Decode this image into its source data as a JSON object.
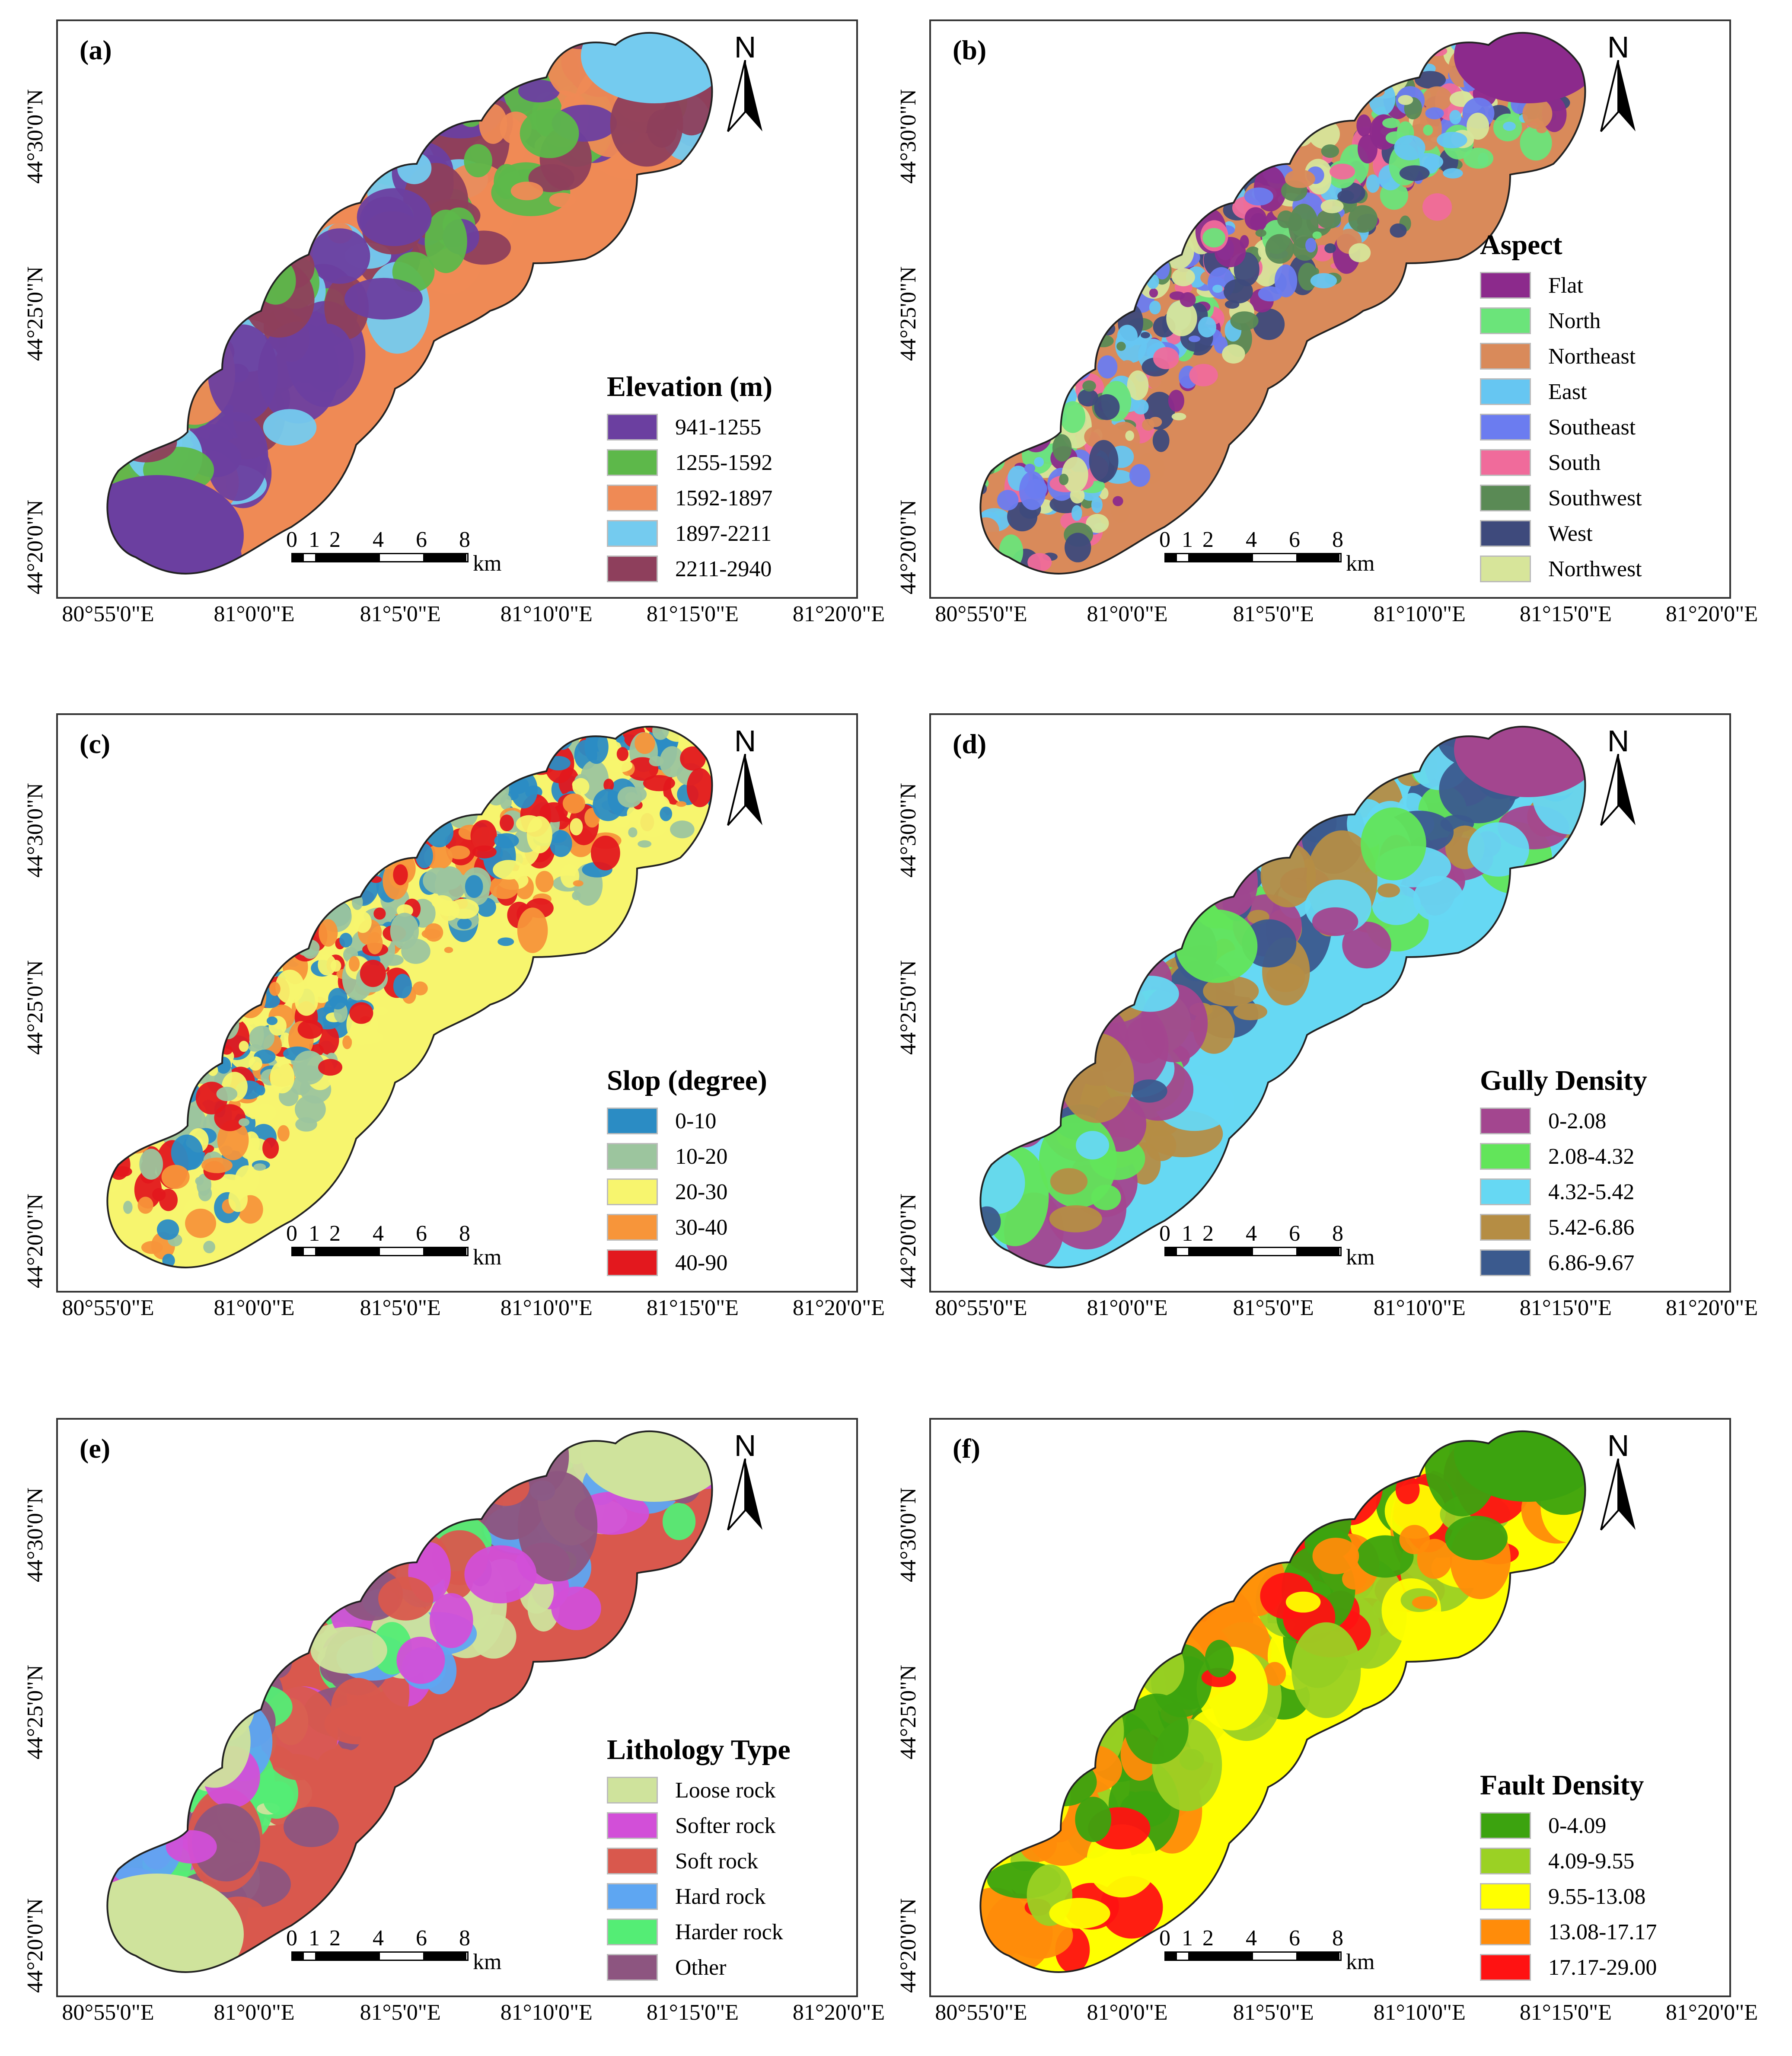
{
  "north_label": "N",
  "scale": {
    "ticks": [
      "0",
      "1",
      "2",
      "4",
      "6",
      "8"
    ],
    "unit": "km"
  },
  "x_ticks": [
    "80°55'0\"E",
    "81°0'0\"E",
    "81°5'0\"E",
    "81°10'0\"E",
    "81°15'0\"E",
    "81°20'0\"E"
  ],
  "y_ticks": [
    "44°30'0\"N",
    "44°25'0\"N",
    "44°20'0\"N"
  ],
  "panels": [
    {
      "id": "a",
      "label": "(a)",
      "legend_title": "Elevation (m)",
      "classes": [
        {
          "label": "941-1255",
          "color": "#6b3fa0"
        },
        {
          "label": "1255-1592",
          "color": "#5db84a"
        },
        {
          "label": "1592-1897",
          "color": "#ef8a55"
        },
        {
          "label": "1897-2211",
          "color": "#74cbef"
        },
        {
          "label": "2211-2940",
          "color": "#8e3f5c"
        }
      ]
    },
    {
      "id": "b",
      "label": "(b)",
      "legend_title": "Aspect",
      "classes": [
        {
          "label": "Flat",
          "color": "#8c2a8c"
        },
        {
          "label": "North",
          "color": "#6be47a"
        },
        {
          "label": "Northeast",
          "color": "#d98a5a"
        },
        {
          "label": "East",
          "color": "#66c6f2"
        },
        {
          "label": "Southeast",
          "color": "#6b7cf0"
        },
        {
          "label": "South",
          "color": "#f06b9b"
        },
        {
          "label": "Southwest",
          "color": "#5a8a55"
        },
        {
          "label": "West",
          "color": "#3e4a7c"
        },
        {
          "label": "Northwest",
          "color": "#d7e59a"
        }
      ]
    },
    {
      "id": "c",
      "label": "(c)",
      "legend_title": "Slop (degree)",
      "classes": [
        {
          "label": "0-10",
          "color": "#2b8cc4"
        },
        {
          "label": "10-20",
          "color": "#9cc59e"
        },
        {
          "label": "20-30",
          "color": "#f7f56e"
        },
        {
          "label": "30-40",
          "color": "#f7953a"
        },
        {
          "label": "40-90",
          "color": "#e3181e"
        }
      ]
    },
    {
      "id": "d",
      "label": "(d)",
      "legend_title": "Gully Density",
      "classes": [
        {
          "label": "0-2.08",
          "color": "#a3468f"
        },
        {
          "label": "2.08-4.32",
          "color": "#62e55a"
        },
        {
          "label": "4.32-5.42",
          "color": "#66d8f3"
        },
        {
          "label": "5.42-6.86",
          "color": "#b58d44"
        },
        {
          "label": "6.86-9.67",
          "color": "#3b5a8e"
        }
      ]
    },
    {
      "id": "e",
      "label": "(e)",
      "legend_title": "Lithology Type",
      "classes": [
        {
          "label": "Loose rock",
          "color": "#cfe39c"
        },
        {
          "label": "Softer rock",
          "color": "#d24fd8"
        },
        {
          "label": "Soft rock",
          "color": "#d9584d"
        },
        {
          "label": "Hard rock",
          "color": "#5ea6f2"
        },
        {
          "label": "Harder rock",
          "color": "#54ed75"
        },
        {
          "label": "Other",
          "color": "#8d5580"
        }
      ]
    },
    {
      "id": "f",
      "label": "(f)",
      "legend_title": "Fault Density",
      "classes": [
        {
          "label": "0-4.09",
          "color": "#3ca30f"
        },
        {
          "label": "4.09-9.55",
          "color": "#9bd124"
        },
        {
          "label": "9.55-13.08",
          "color": "#ffff00"
        },
        {
          "label": "13.08-17.17",
          "color": "#ff8c0a"
        },
        {
          "label": "17.17-29.00",
          "color": "#ff1212"
        }
      ]
    }
  ]
}
